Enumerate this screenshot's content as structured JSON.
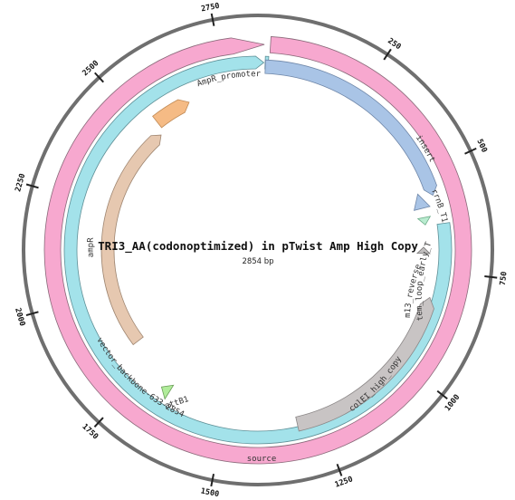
{
  "plasmid": {
    "title": "TRI3_AA(codonoptimized) in pTwist Amp High Copy",
    "length_label": "2854 bp",
    "length": 2854
  },
  "ticks": [
    {
      "bp": 250,
      "label": "250"
    },
    {
      "bp": 500,
      "label": "500"
    },
    {
      "bp": 750,
      "label": "750"
    },
    {
      "bp": 1000,
      "label": "1000"
    },
    {
      "bp": 1250,
      "label": "1250"
    },
    {
      "bp": 1500,
      "label": "1500"
    },
    {
      "bp": 1750,
      "label": "1750"
    },
    {
      "bp": 2000,
      "label": "2000"
    },
    {
      "bp": 2250,
      "label": "2250"
    },
    {
      "bp": 2500,
      "label": "2500"
    },
    {
      "bp": 2750,
      "label": "2750"
    }
  ],
  "colors": {
    "source": "#f7a8cf",
    "vector_backbone": "#a3e2ea",
    "insert": "#a9c4e6",
    "ampR": "#e6c8b0",
    "ampR_promoter": "#f5bb85",
    "coleI": "#c8c4c4",
    "rrnB": "#a9c4e6",
    "terminator": "#b9ecd0",
    "primer": "#c0bebe",
    "attB1": "#b0ec9a"
  },
  "features": [
    {
      "name": "source",
      "label": "source",
      "start": 0,
      "end": 2854,
      "track": "source"
    },
    {
      "name": "vector-backbone",
      "label": "vector_backbone-633-2854",
      "start": 633,
      "end": 2854,
      "track": "backbone"
    },
    {
      "name": "insert",
      "label": "insert",
      "start": 0,
      "end": 560,
      "track": "inner"
    },
    {
      "name": "ampR",
      "label": "ampR",
      "start": 1830,
      "end": 2520,
      "track": "deep"
    },
    {
      "name": "ampR-promoter",
      "label": "AmpR_promoter",
      "start": 2535,
      "end": 2640,
      "track": "deep"
    },
    {
      "name": "colE1",
      "label": "colEI_high_copy",
      "start": 820,
      "end": 1310,
      "track": "inner"
    },
    {
      "name": "rrnB-T1",
      "label": "rrnB_T1",
      "start": 545,
      "end": 585,
      "track": "inner"
    },
    {
      "name": "stem-loop-early-t7",
      "label": "stem_loop_early_T7",
      "start": 610,
      "end": 630,
      "track": "inner"
    },
    {
      "name": "m13-reverse",
      "label": "m13_reverse",
      "start": 690,
      "end": 707,
      "track": "inner"
    },
    {
      "name": "attB1",
      "label": "attB1",
      "start": 1665,
      "end": 1690,
      "track": "inner"
    }
  ]
}
